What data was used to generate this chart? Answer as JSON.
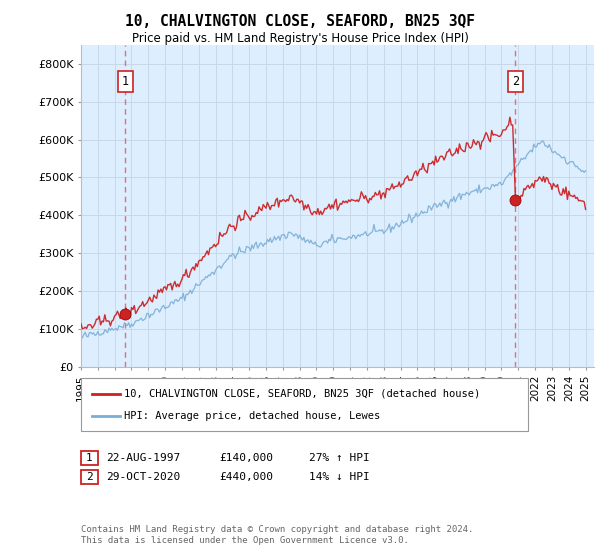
{
  "title": "10, CHALVINGTON CLOSE, SEAFORD, BN25 3QF",
  "subtitle": "Price paid vs. HM Land Registry's House Price Index (HPI)",
  "ylabel_ticks": [
    "£800K",
    "£700K",
    "£600K",
    "£500K",
    "£400K",
    "£300K",
    "£200K",
    "£100K",
    "£0"
  ],
  "ytick_values": [
    800000,
    700000,
    600000,
    500000,
    400000,
    300000,
    200000,
    100000,
    0
  ],
  "ylim": [
    0,
    850000
  ],
  "xlim_start": 1995.0,
  "xlim_end": 2025.5,
  "legend_line1": "10, CHALVINGTON CLOSE, SEAFORD, BN25 3QF (detached house)",
  "legend_line2": "HPI: Average price, detached house, Lewes",
  "sale1_label": "1",
  "sale1_date": "22-AUG-1997",
  "sale1_price": "£140,000",
  "sale1_hpi": "27% ↑ HPI",
  "sale1_year": 1997.64,
  "sale1_value": 140000,
  "sale2_label": "2",
  "sale2_date": "29-OCT-2020",
  "sale2_price": "£440,000",
  "sale2_hpi": "14% ↓ HPI",
  "sale2_year": 2020.83,
  "sale2_value": 440000,
  "vline_color": "#e06070",
  "price_line_color": "#cc2222",
  "hpi_line_color": "#7aadd4",
  "background_color": "#ddeeff",
  "footer": "Contains HM Land Registry data © Crown copyright and database right 2024.\nThis data is licensed under the Open Government Licence v3.0.",
  "grid_color": "#c8d8e8",
  "label_box_color": "#cc2222"
}
